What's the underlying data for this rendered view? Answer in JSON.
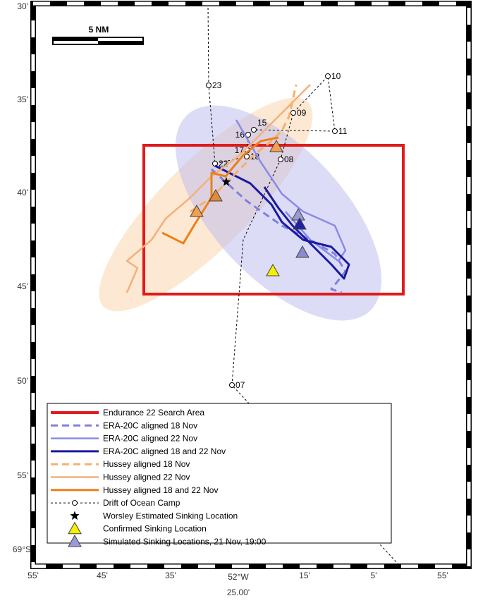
{
  "scale_bar": "5 NM",
  "y_labels": [
    "30'",
    "35'",
    "40'",
    "45'",
    "50'",
    "55'",
    "69°S"
  ],
  "x_labels": [
    "55'",
    "45'",
    "35'",
    "52°W",
    "15'",
    "5'",
    "55'"
  ],
  "x_sublabel": "25.00'",
  "drift_labels": [
    "23",
    "10",
    "09",
    "15",
    "16",
    "11",
    "17",
    "18",
    "22",
    "08",
    "07"
  ],
  "legend": [
    "Endurance 22 Search Area",
    "ERA-20C aligned 18 Nov",
    "ERA-20C aligned 22 Nov",
    "ERA-20C aligned 18 and 22 Nov",
    "Hussey aligned 18 Nov",
    "Hussey aligned 22 Nov",
    "Hussey aligned 18 and 22 Nov",
    "Drift of Ocean Camp",
    "Worsley Estimated Sinking Location",
    "Confirmed Sinking Location",
    "Simulated Sinking Locations, 21 Nov, 19:00"
  ]
}
